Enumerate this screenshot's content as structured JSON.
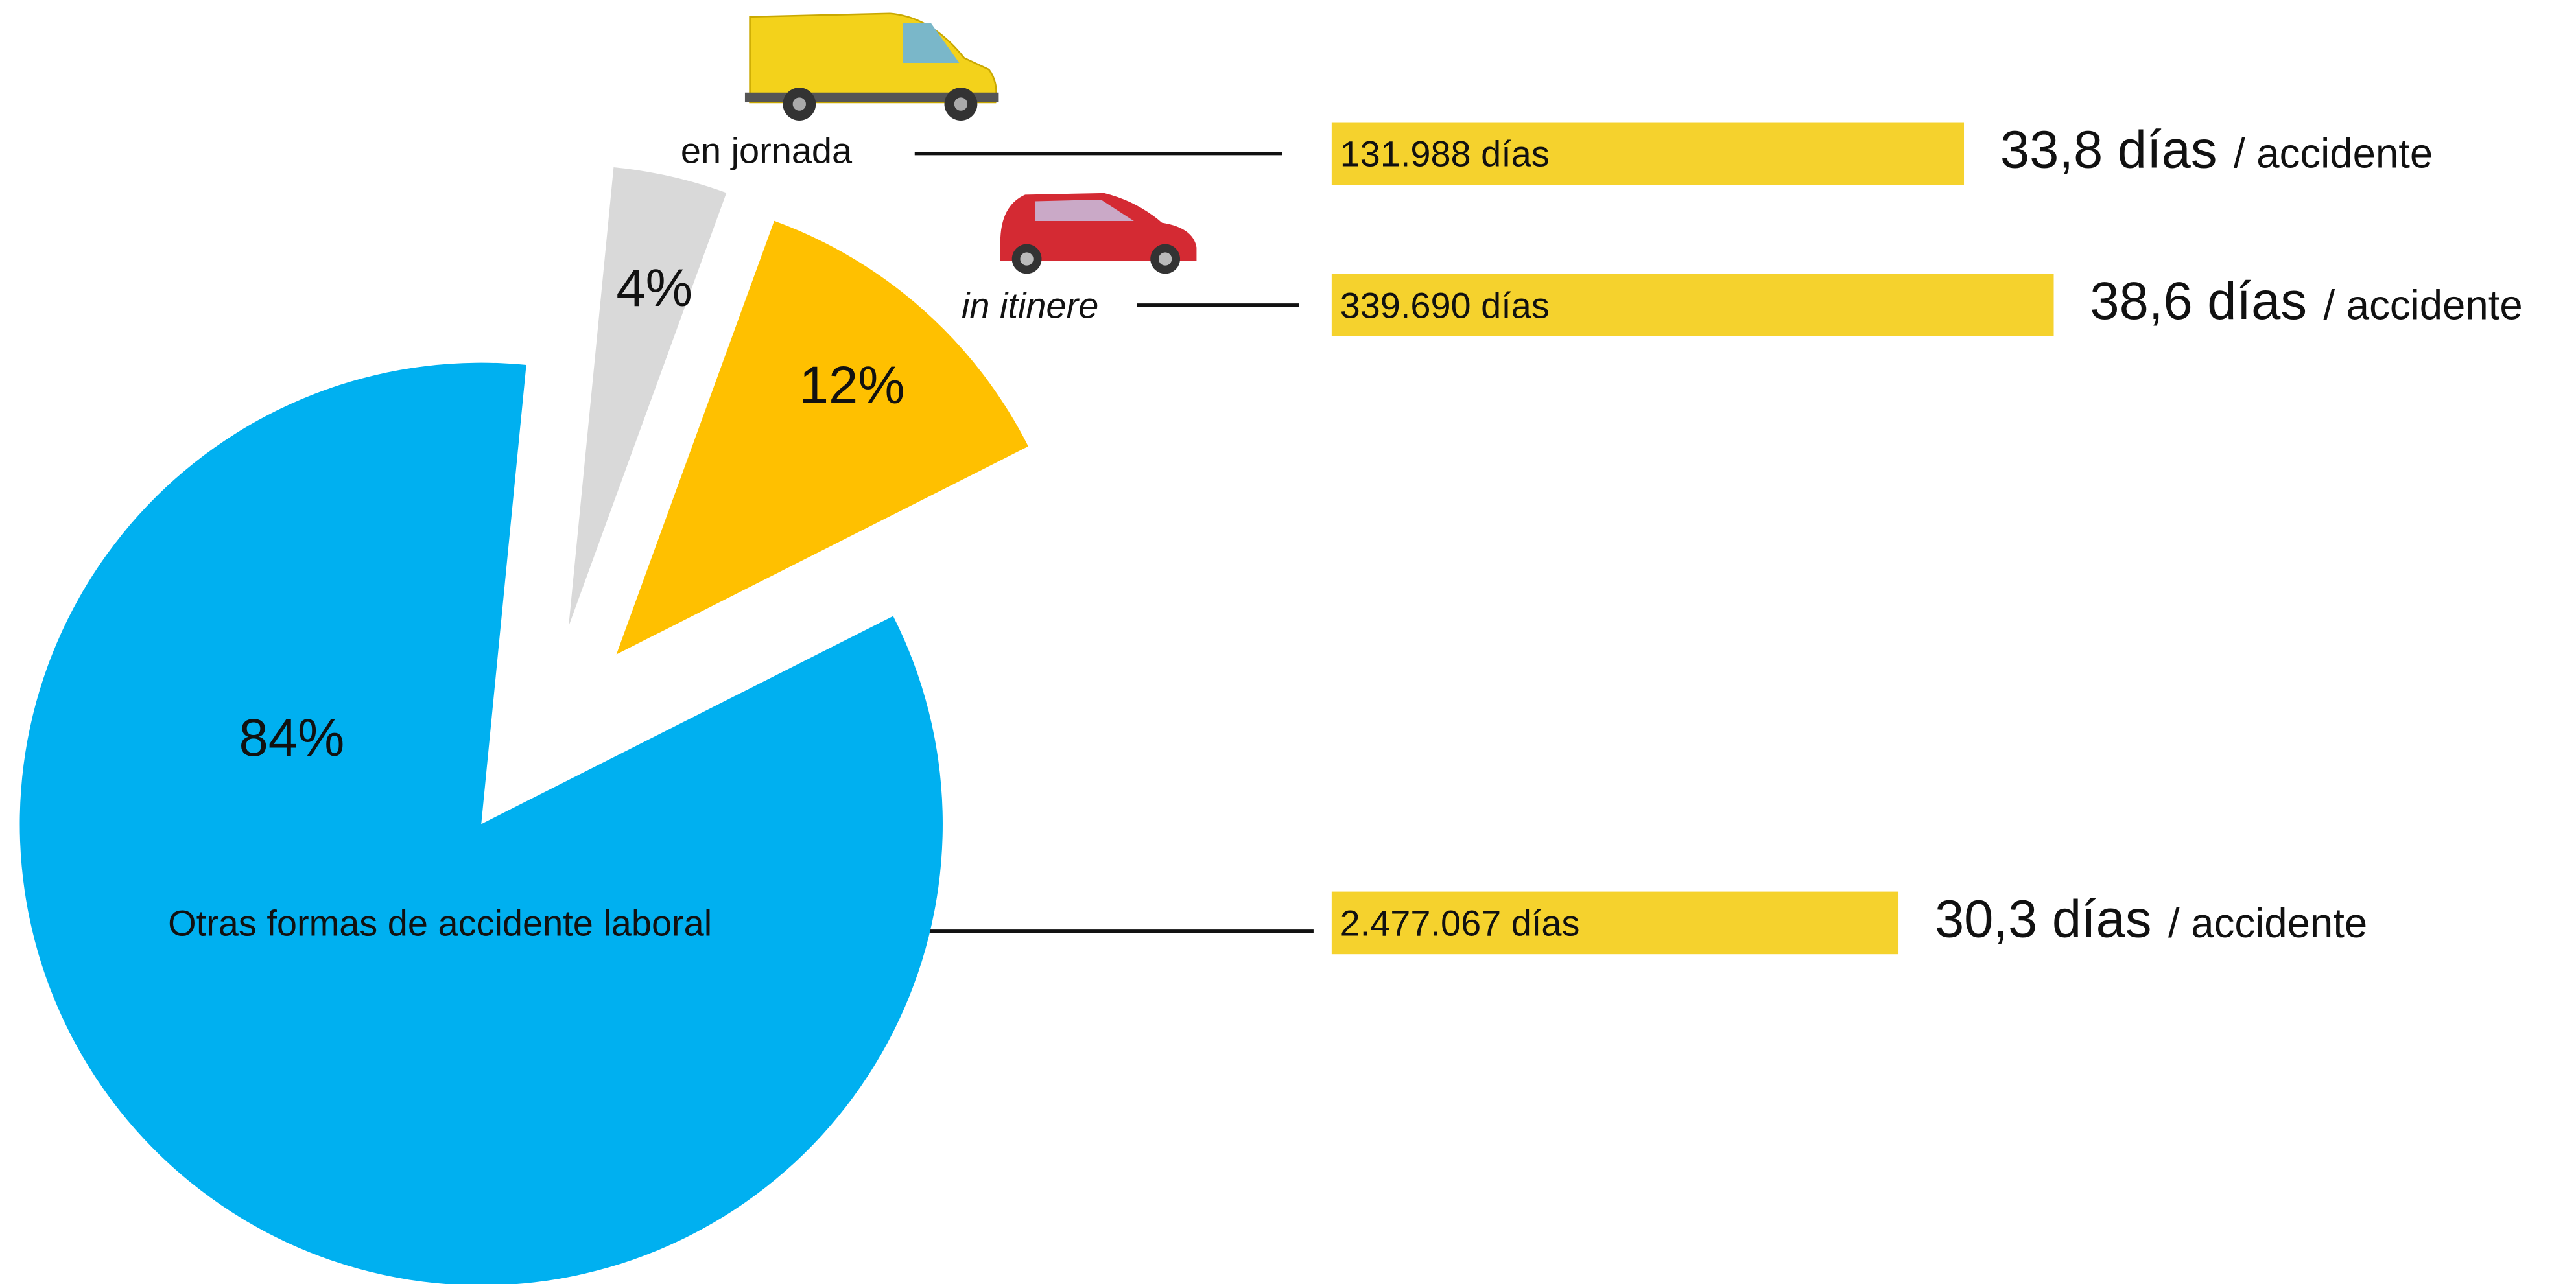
{
  "chart_data": [
    {
      "type": "pie",
      "categories": [
        "en jornada",
        "in itinere",
        "Otras formas de accidente laboral"
      ],
      "values": [
        4,
        12,
        84
      ],
      "value_labels": [
        "4%",
        "12%",
        "84%"
      ],
      "colors": [
        "#d9d9d9",
        "#ffc000",
        "#00b0f0"
      ]
    },
    {
      "type": "bar",
      "values": [
        33.8,
        38.6,
        30.3
      ],
      "value_labels": [
        "33,8 días",
        "38,6 días",
        "30,3 días"
      ],
      "unit_label": "/ accidente",
      "days": [
        131988,
        339690,
        2477067
      ],
      "days_labels": [
        "131.988 días",
        "339.690 días",
        "2.477.067 días"
      ],
      "color": "#f5d22d"
    }
  ]
}
